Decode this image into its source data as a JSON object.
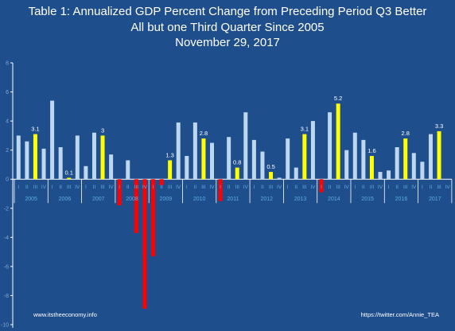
{
  "title_lines": [
    "Table 1: Annualized GDP Percent Change from Preceding Period Q3 Better",
    "All but one Third Quarter Since 2005",
    "November 29, 2017"
  ],
  "footer": {
    "left": "www.itstheeconomy.info",
    "right": "https://twitter.com/Annie_TEA"
  },
  "colors": {
    "background": "#1f4e8c",
    "bar_positive": "#bdd7ee",
    "bar_q3": "#ffff00",
    "bar_negative": "#ff0000",
    "axis": "#ffffff",
    "tick_labels_x": "#5dade2",
    "tick_labels_y": "#7fa8d9",
    "data_labels": "#ffffff"
  },
  "chart_data": {
    "type": "bar",
    "title": "Table 1: Annualized GDP Percent Change from Preceding Period Q3 Better",
    "subtitle": "All but one Third Quarter Since 2005 — November 29, 2017",
    "ylim": [
      -10,
      8
    ],
    "yticks": [
      -10,
      -8,
      -6,
      -4,
      -2,
      0,
      2,
      4,
      6,
      8
    ],
    "grid": false,
    "quarter_labels": [
      "I",
      "II",
      "III",
      "IV"
    ],
    "highlight_quarter": "III",
    "years": [
      {
        "year": "2005",
        "values": [
          3.0,
          2.6,
          3.1,
          2.1
        ]
      },
      {
        "year": "2006",
        "values": [
          5.4,
          2.2,
          0.1,
          3.0
        ]
      },
      {
        "year": "2007",
        "values": [
          0.9,
          3.2,
          3.0,
          1.7
        ]
      },
      {
        "year": "2008",
        "values": [
          -1.8,
          1.3,
          -3.7,
          -8.9
        ]
      },
      {
        "year": "2009",
        "values": [
          -5.3,
          -0.4,
          1.3,
          3.9
        ]
      },
      {
        "year": "2010",
        "values": [
          1.6,
          3.9,
          2.8,
          2.5
        ]
      },
      {
        "year": "2011",
        "values": [
          -1.5,
          2.9,
          0.8,
          4.6
        ]
      },
      {
        "year": "2012",
        "values": [
          2.7,
          1.9,
          0.5,
          0.1
        ]
      },
      {
        "year": "2013",
        "values": [
          2.8,
          0.8,
          3.1,
          4.0
        ]
      },
      {
        "year": "2014",
        "values": [
          -0.9,
          4.6,
          5.2,
          2.0
        ]
      },
      {
        "year": "2015",
        "values": [
          3.2,
          2.7,
          1.6,
          0.5
        ]
      },
      {
        "year": "2016",
        "values": [
          0.6,
          2.2,
          2.8,
          1.8
        ]
      },
      {
        "year": "2017",
        "values": [
          1.2,
          3.1,
          3.3,
          null
        ]
      }
    ],
    "data_labels": [
      {
        "year": "2005",
        "quarter": "III",
        "text": "3.1"
      },
      {
        "year": "2006",
        "quarter": "III",
        "text": "0.1"
      },
      {
        "year": "2007",
        "quarter": "III",
        "text": "3"
      },
      {
        "year": "2009",
        "quarter": "III",
        "text": "1.3"
      },
      {
        "year": "2010",
        "quarter": "III",
        "text": "2.8"
      },
      {
        "year": "2011",
        "quarter": "III",
        "text": "0.8"
      },
      {
        "year": "2012",
        "quarter": "III",
        "text": "0.5"
      },
      {
        "year": "2013",
        "quarter": "III",
        "text": "3.1"
      },
      {
        "year": "2014",
        "quarter": "III",
        "text": "5.2"
      },
      {
        "year": "2015",
        "quarter": "III",
        "text": "1.6"
      },
      {
        "year": "2016",
        "quarter": "III",
        "text": "2.8"
      },
      {
        "year": "2017",
        "quarter": "III",
        "text": "3.3"
      }
    ]
  }
}
